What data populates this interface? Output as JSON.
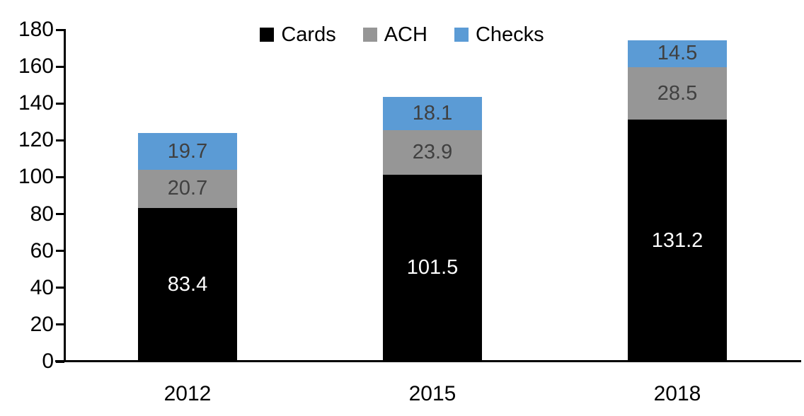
{
  "chart_data": {
    "type": "bar",
    "stacked": true,
    "title": "",
    "xlabel": "",
    "ylabel": "",
    "categories": [
      "2012",
      "2015",
      "2018"
    ],
    "series": [
      {
        "name": "Cards",
        "color": "#000000",
        "label_color": "#FFFFFF",
        "values": [
          83.4,
          101.5,
          131.2
        ]
      },
      {
        "name": "ACH",
        "color": "#969696",
        "label_color": "#404040",
        "values": [
          20.7,
          23.9,
          28.5
        ]
      },
      {
        "name": "Checks",
        "color": "#5B9BD5",
        "label_color": "#404040",
        "values": [
          19.7,
          18.1,
          14.5
        ]
      }
    ],
    "totals": [
      123.8,
      143.5,
      174.2
    ],
    "ylim": [
      0,
      180
    ],
    "ytick_step": 20,
    "yticks": [
      0,
      20,
      40,
      60,
      80,
      100,
      120,
      140,
      160,
      180
    ],
    "legend_position": "top",
    "grid": false,
    "data_labels": true,
    "background_color": "#FFFFFF",
    "axis_color": "#000000"
  }
}
